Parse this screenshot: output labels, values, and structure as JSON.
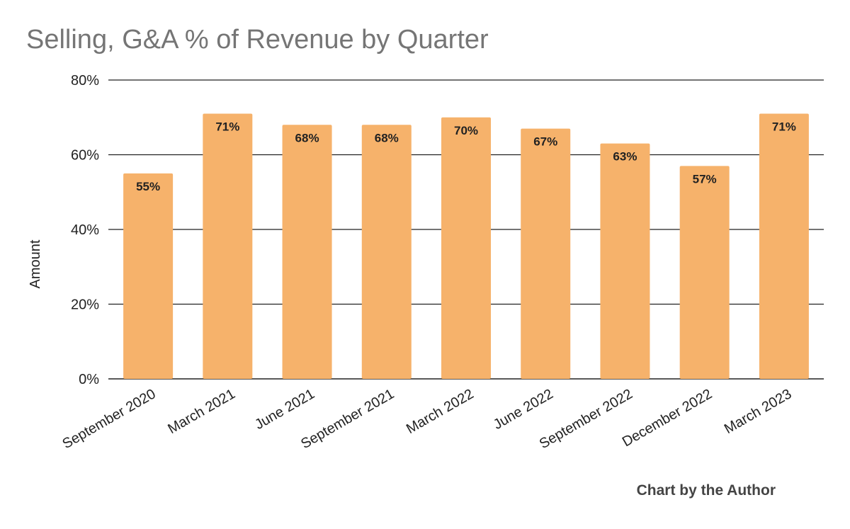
{
  "chart_data": {
    "type": "bar",
    "title": "Selling, G&A % of Revenue by Quarter",
    "xlabel": "",
    "ylabel": "Amount",
    "categories": [
      "September 2020",
      "March 2021",
      "June 2021",
      "September 2021",
      "March 2022",
      "June 2022",
      "September 2022",
      "December 2022",
      "March 2023"
    ],
    "values": [
      55,
      71,
      68,
      68,
      70,
      67,
      63,
      57,
      71
    ],
    "data_labels": [
      "55%",
      "71%",
      "68%",
      "68%",
      "70%",
      "67%",
      "63%",
      "57%",
      "71%"
    ],
    "ylim": [
      0,
      80
    ],
    "yticks": [
      0,
      20,
      40,
      60,
      80
    ],
    "ytick_labels": [
      "0%",
      "20%",
      "40%",
      "60%",
      "80%"
    ],
    "grid": true,
    "legend": "none",
    "bar_color": "#f6b26b",
    "gridline_color": "#222222"
  },
  "footer": {
    "credit": "Chart by the Author"
  }
}
